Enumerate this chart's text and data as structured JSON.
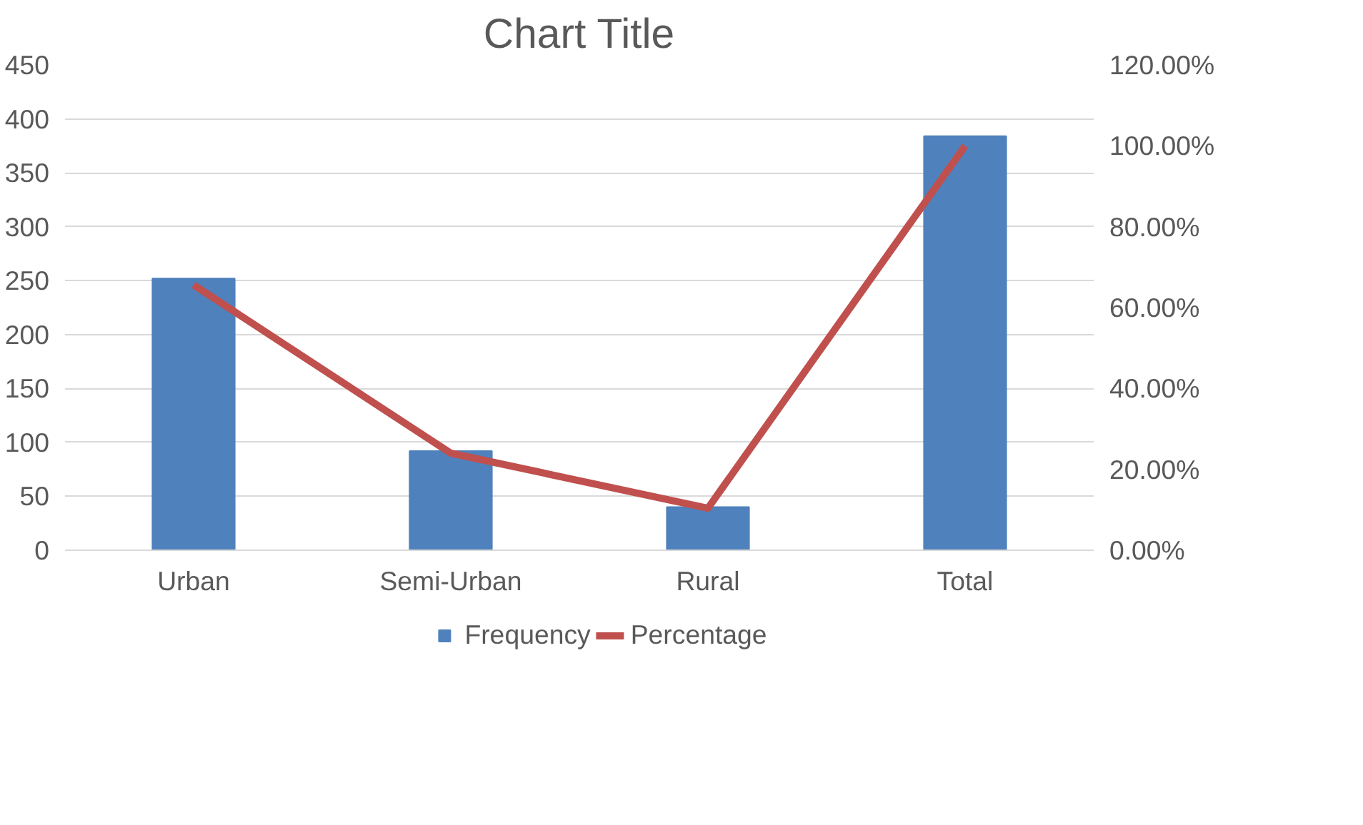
{
  "chart_data": {
    "type": "bar",
    "title": "Chart Title",
    "categories": [
      "Urban",
      "Semi-Urban",
      "Rural",
      "Total"
    ],
    "series": [
      {
        "name": "Frequency",
        "color": "#4f81bd",
        "values": [
          252,
          92,
          40,
          384
        ]
      },
      {
        "name": "Percentage",
        "color": "#c0504d",
        "type": "line",
        "axis": "y2",
        "values": [
          65.6,
          24.0,
          10.4,
          100
        ]
      }
    ],
    "ylim": [
      0,
      450
    ],
    "yticks": [
      0,
      50,
      100,
      150,
      200,
      250,
      300,
      350,
      400,
      450
    ],
    "y2lim": [
      0,
      120
    ],
    "y2ticks": [
      {
        "value": 0,
        "label": "0.00%"
      },
      {
        "value": 20,
        "label": "20.00%"
      },
      {
        "value": 40,
        "label": "40.00%"
      },
      {
        "value": 60,
        "label": "60.00%"
      },
      {
        "value": 80,
        "label": "80.00%"
      },
      {
        "value": 100,
        "label": "100.00%"
      },
      {
        "value": 120,
        "label": "120.00%"
      }
    ],
    "grid": "y",
    "legend": "bottom"
  }
}
